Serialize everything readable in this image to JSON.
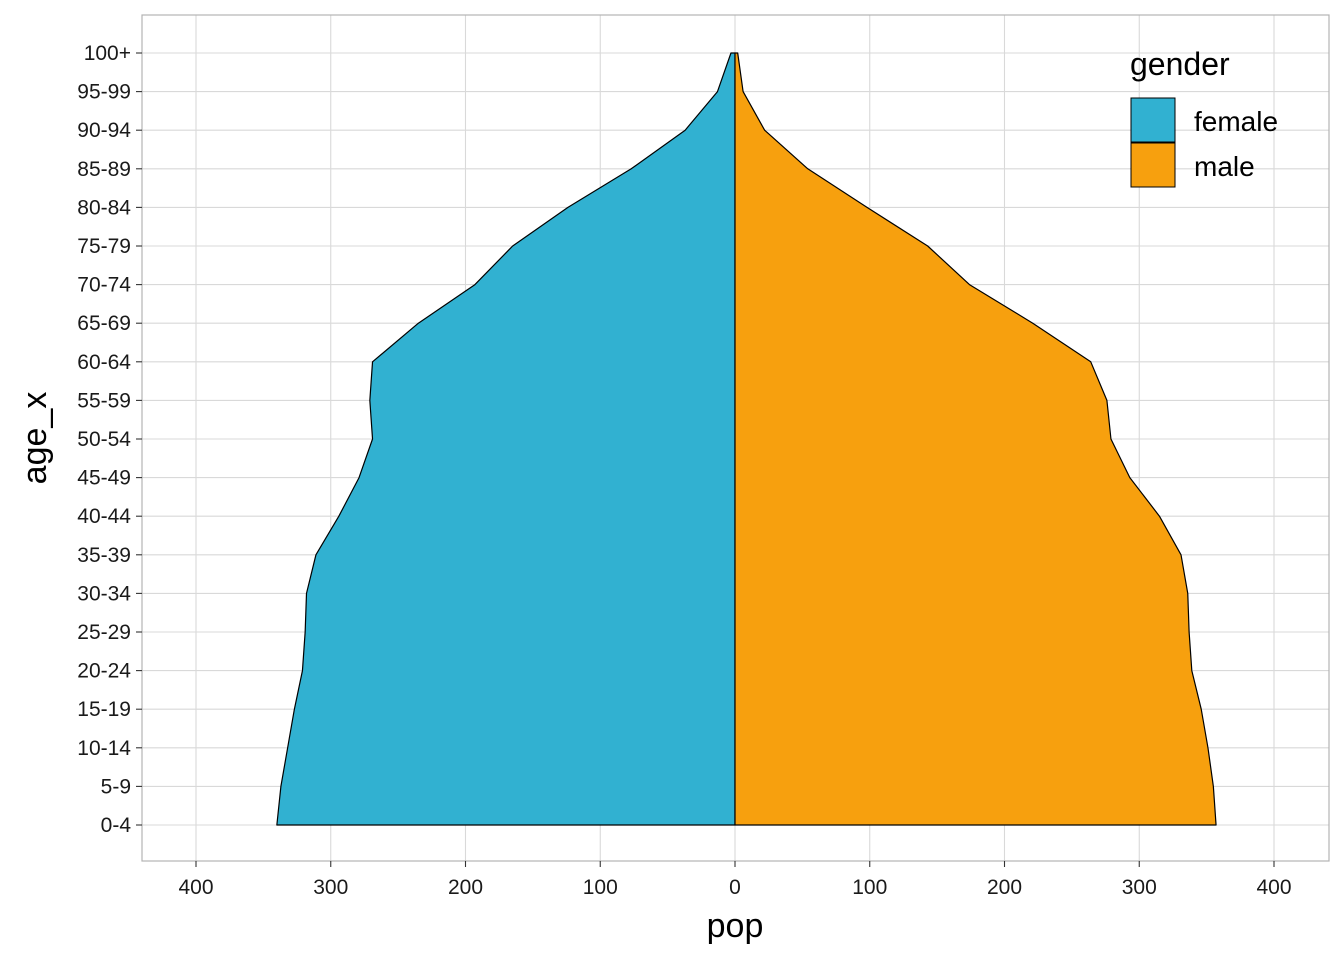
{
  "chart_data": {
    "type": "area",
    "orientation": "horizontal",
    "xlabel": "pop",
    "ylabel": "age_x",
    "xlim": [
      -440,
      440
    ],
    "x_ticks": [
      -400,
      -300,
      -200,
      -100,
      0,
      100,
      200,
      300,
      400
    ],
    "x_tick_labels": [
      "400",
      "300",
      "200",
      "100",
      "0",
      "100",
      "200",
      "300",
      "400"
    ],
    "categories": [
      "0-4",
      "5-9",
      "10-14",
      "15-19",
      "20-24",
      "25-29",
      "30-34",
      "35-39",
      "40-44",
      "45-49",
      "50-54",
      "55-59",
      "60-64",
      "65-69",
      "70-74",
      "75-79",
      "80-84",
      "85-89",
      "90-94",
      "95-99",
      "100+"
    ],
    "series": [
      {
        "name": "female",
        "color": "#31B1D1",
        "values": [
          340,
          337,
          332,
          327,
          321,
          319,
          318,
          311,
          294,
          279,
          269,
          271,
          269,
          235,
          193,
          165,
          124,
          77,
          37,
          13,
          3
        ]
      },
      {
        "name": "male",
        "color": "#F7A00E",
        "values": [
          357,
          355,
          351,
          346,
          339,
          337,
          336,
          331,
          315,
          293,
          279,
          276,
          264,
          221,
          174,
          143,
          98,
          54,
          22,
          6,
          2
        ]
      }
    ],
    "legend": {
      "title": "gender",
      "position": "top-right",
      "entries": [
        "female",
        "male"
      ]
    },
    "grid": true,
    "grid_color": "#d9d9d9",
    "border_color": "#b3b3b3"
  }
}
